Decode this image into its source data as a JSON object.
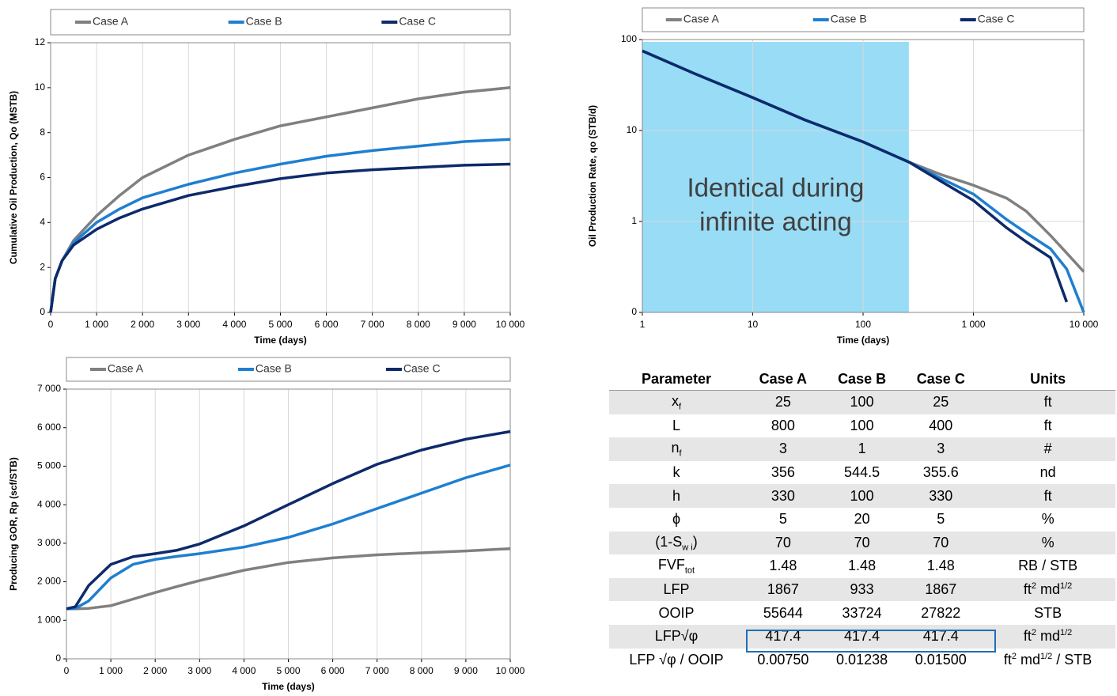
{
  "chart_data": [
    {
      "type": "line",
      "x_label": "Time (days)",
      "y_label": "Cumulative Oil Production, Qo (MSTB)",
      "grid": "x",
      "x": [
        0,
        100,
        250,
        500,
        1000,
        1500,
        2000,
        3000,
        4000,
        5000,
        6000,
        7000,
        8000,
        9000,
        10000
      ],
      "xlim": [
        0,
        10000
      ],
      "xticks": [
        0,
        {
          "value": 1000,
          "label": "1 000"
        },
        {
          "value": 2000,
          "label": "2 000"
        },
        {
          "value": 3000,
          "label": "3 000"
        },
        {
          "value": 4000,
          "label": "4 000"
        },
        {
          "value": 5000,
          "label": "5 000"
        },
        {
          "value": 6000,
          "label": "6 000"
        },
        {
          "value": 7000,
          "label": "7 000"
        },
        {
          "value": 8000,
          "label": "8 000"
        },
        {
          "value": 9000,
          "label": "9 000"
        },
        {
          "value": 10000,
          "label": "10 000"
        }
      ],
      "ylim": [
        0,
        12
      ],
      "yticks": [
        0,
        2,
        4,
        6,
        8,
        10,
        12
      ],
      "series": [
        {
          "name": "Case A",
          "color": "#808080",
          "values": [
            0,
            1.5,
            2.3,
            3.2,
            4.3,
            5.2,
            6.0,
            7.0,
            7.7,
            8.3,
            8.7,
            9.1,
            9.5,
            9.8,
            10.0
          ]
        },
        {
          "name": "Case B",
          "color": "#1f7fd0",
          "values": [
            0,
            1.5,
            2.3,
            3.1,
            4.0,
            4.6,
            5.1,
            5.7,
            6.2,
            6.6,
            6.95,
            7.2,
            7.4,
            7.6,
            7.7
          ]
        },
        {
          "name": "Case C",
          "color": "#0d2a6b",
          "values": [
            0,
            1.5,
            2.3,
            3.0,
            3.7,
            4.2,
            4.6,
            5.2,
            5.6,
            5.95,
            6.2,
            6.35,
            6.45,
            6.55,
            6.6
          ]
        }
      ]
    },
    {
      "type": "line",
      "x_label": "Time (days)",
      "y_label": "Oil Production Rate, qo (STB/d)",
      "grid": "both",
      "x_scale": "log",
      "y_scale": "log",
      "x": [
        1,
        3,
        10,
        30,
        100,
        260,
        500,
        1000,
        2000,
        3000,
        5000,
        7000,
        10000
      ],
      "xlim": [
        1,
        10000
      ],
      "xticks": [
        1,
        10,
        100,
        {
          "value": 1000,
          "label": "1 000"
        },
        {
          "value": 10000,
          "label": "10 000"
        }
      ],
      "ylim": [
        0.1,
        100
      ],
      "yticks": [
        {
          "value": 0.1,
          "label": "0"
        },
        1,
        10,
        100
      ],
      "shaded_region": [
        1,
        260
      ],
      "annotation": [
        "Identical during",
        "infinite acting"
      ],
      "series": [
        {
          "name": "Case A",
          "color": "#808080",
          "values": [
            75,
            42,
            23,
            13,
            7.5,
            4.5,
            3.3,
            2.5,
            1.8,
            1.3,
            0.7,
            0.45,
            0.28
          ]
        },
        {
          "name": "Case B",
          "color": "#1f7fd0",
          "values": [
            75,
            42,
            23,
            13,
            7.5,
            4.5,
            3.0,
            2.0,
            1.05,
            0.75,
            0.5,
            0.3,
            0.1
          ]
        },
        {
          "name": "Case C",
          "color": "#0d2a6b",
          "values": [
            75,
            42,
            23,
            13,
            7.5,
            4.5,
            2.8,
            1.7,
            0.85,
            0.6,
            0.4,
            0.13,
            null
          ]
        }
      ]
    },
    {
      "type": "line",
      "x_label": "Time (days)",
      "y_label": "Producing GOR, Rp (scf/STB)",
      "grid": "x",
      "x": [
        0,
        200,
        500,
        1000,
        1500,
        2000,
        2500,
        3000,
        4000,
        5000,
        6000,
        7000,
        8000,
        9000,
        10000
      ],
      "xlim": [
        0,
        10000
      ],
      "xticks": [
        0,
        {
          "value": 1000,
          "label": "1 000"
        },
        {
          "value": 2000,
          "label": "2 000"
        },
        {
          "value": 3000,
          "label": "3 000"
        },
        {
          "value": 4000,
          "label": "4 000"
        },
        {
          "value": 5000,
          "label": "5 000"
        },
        {
          "value": 6000,
          "label": "6 000"
        },
        {
          "value": 7000,
          "label": "7 000"
        },
        {
          "value": 8000,
          "label": "8 000"
        },
        {
          "value": 9000,
          "label": "9 000"
        },
        {
          "value": 10000,
          "label": "10 000"
        }
      ],
      "ylim": [
        0,
        7000
      ],
      "yticks": [
        0,
        {
          "value": 1000,
          "label": "1 000"
        },
        {
          "value": 2000,
          "label": "2 000"
        },
        {
          "value": 3000,
          "label": "3 000"
        },
        {
          "value": 4000,
          "label": "4 000"
        },
        {
          "value": 5000,
          "label": "5 000"
        },
        {
          "value": 6000,
          "label": "6 000"
        },
        {
          "value": 7000,
          "label": "7 000"
        }
      ],
      "series": [
        {
          "name": "Case A",
          "color": "#808080",
          "values": [
            1300,
            1300,
            1310,
            1380,
            1550,
            1720,
            1880,
            2030,
            2300,
            2500,
            2620,
            2700,
            2750,
            2800,
            2860
          ]
        },
        {
          "name": "Case B",
          "color": "#1f7fd0",
          "values": [
            1300,
            1310,
            1500,
            2100,
            2450,
            2580,
            2660,
            2730,
            2900,
            3150,
            3500,
            3900,
            4300,
            4700,
            5030
          ]
        },
        {
          "name": "Case C",
          "color": "#0d2a6b",
          "values": [
            1300,
            1350,
            1900,
            2450,
            2650,
            2730,
            2820,
            2980,
            3450,
            4000,
            4550,
            5050,
            5420,
            5700,
            5900
          ]
        }
      ]
    }
  ],
  "table": {
    "header": [
      "Parameter",
      "Case A",
      "Case B",
      "Case C",
      "Units"
    ],
    "rows": [
      [
        [
          "x",
          {
            "sub": "f"
          }
        ],
        "25",
        "100",
        "25",
        "ft"
      ],
      [
        "L",
        "800",
        "100",
        "400",
        "ft"
      ],
      [
        [
          "n",
          {
            "sub": "f"
          }
        ],
        "3",
        "1",
        "3",
        "#"
      ],
      [
        "k",
        "356",
        "544.5",
        "355.6",
        "nd"
      ],
      [
        "h",
        "330",
        "100",
        "330",
        "ft"
      ],
      [
        "ϕ",
        "5",
        "20",
        "5",
        "%"
      ],
      [
        [
          "(1-S",
          {
            "sub": "w i"
          },
          ")"
        ],
        "70",
        "70",
        "70",
        "%"
      ],
      [
        [
          "FVF",
          {
            "sub": "tot"
          }
        ],
        "1.48",
        "1.48",
        "1.48",
        "RB / STB"
      ],
      [
        "LFP",
        "1867",
        "933",
        "1867",
        [
          "ft",
          {
            "sup": "2"
          },
          " md",
          {
            "sup": "1/2"
          }
        ]
      ],
      [
        "OOIP",
        "55644",
        "33724",
        "27822",
        "STB"
      ],
      [
        "LFP√φ",
        "417.4",
        "417.4",
        "417.4",
        [
          "ft",
          {
            "sup": "2"
          },
          " md",
          {
            "sup": "1/2"
          }
        ]
      ],
      [
        "LFP √φ / OOIP",
        "0.00750",
        "0.01238",
        "0.01500",
        [
          "ft",
          {
            "sup": "2"
          },
          " md",
          {
            "sup": "1/2"
          },
          " / STB"
        ]
      ]
    ]
  }
}
